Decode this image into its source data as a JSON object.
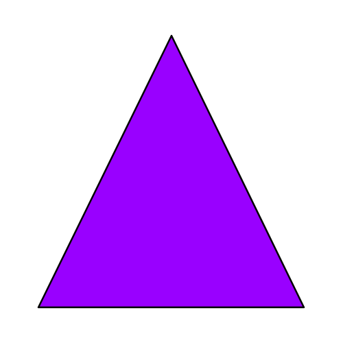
{
  "shape": {
    "type": "triangle",
    "fill_color": "#9900ff",
    "stroke_color": "#000000"
  },
  "background": {
    "color": "#ffffff"
  }
}
